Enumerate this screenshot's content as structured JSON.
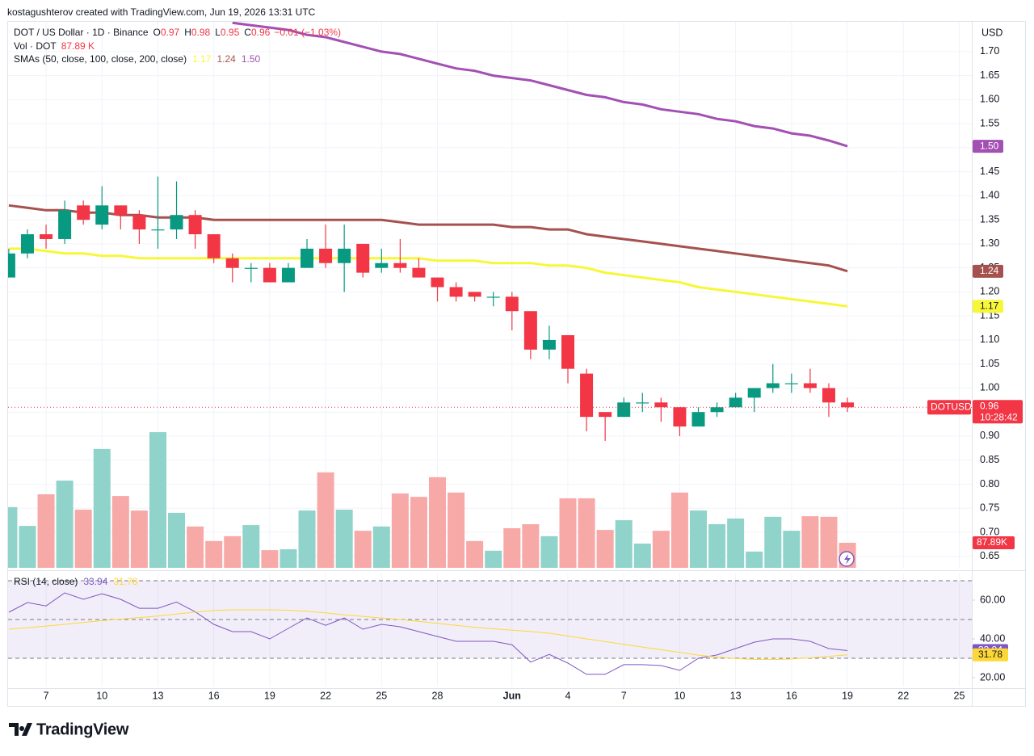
{
  "header": {
    "attribution": "kostagushterov created with TradingView.com, Jun 19, 2026 13:31 UTC"
  },
  "footer": {
    "brand": "TradingView"
  },
  "chart_data": {
    "type": "candlestick",
    "legend": {
      "symbol": "DOT / US Dollar · 1D · Binance",
      "open_key": "O",
      "high_key": "H",
      "low_key": "L",
      "close_key": "C",
      "change": "−0.01 (−1.03%)",
      "volume_title": "Vol · DOT",
      "volume": "87.89 K"
    },
    "currency": "USD",
    "price_badge": {
      "symbol": "DOTUSD",
      "countdown": "10:28:42"
    },
    "up_color": "#089981",
    "down_color": "#f23645",
    "categories": [
      null,
      null,
      "7",
      null,
      null,
      "10",
      null,
      null,
      "13",
      null,
      null,
      "16",
      null,
      null,
      "19",
      null,
      null,
      "22",
      null,
      null,
      "25",
      null,
      null,
      "28",
      null,
      null,
      null,
      "Jun",
      null,
      null,
      "4",
      null,
      null,
      "7",
      null,
      null,
      "10",
      null,
      null,
      "13",
      null,
      null,
      "16",
      null,
      null,
      "19",
      null,
      null,
      "22",
      null,
      null,
      "25"
    ],
    "open": [
      1.23,
      1.28,
      1.32,
      1.31,
      1.38,
      1.34,
      1.38,
      1.36,
      1.33,
      1.33,
      1.36,
      1.32,
      1.27,
      1.25,
      1.25,
      1.22,
      1.25,
      1.29,
      1.26,
      1.3,
      1.25,
      1.26,
      1.25,
      1.23,
      1.21,
      1.2,
      1.19,
      1.19,
      1.16,
      1.08,
      1.11,
      1.03,
      0.95,
      0.94,
      0.97,
      0.97,
      0.96,
      0.92,
      0.95,
      0.96,
      0.98,
      1.0,
      1.01,
      1.01,
      1.0,
      0.97,
      null,
      null,
      null,
      null,
      null,
      null
    ],
    "high": [
      1.29,
      1.33,
      1.34,
      1.39,
      1.39,
      1.42,
      1.38,
      1.37,
      1.44,
      1.43,
      1.37,
      1.32,
      1.28,
      1.26,
      1.26,
      1.26,
      1.31,
      1.34,
      1.34,
      1.3,
      1.29,
      1.31,
      1.27,
      1.23,
      1.22,
      1.2,
      1.2,
      1.2,
      1.16,
      1.13,
      1.11,
      1.04,
      0.95,
      0.98,
      0.99,
      0.98,
      0.96,
      0.96,
      0.97,
      0.99,
      1.0,
      1.05,
      1.03,
      1.04,
      1.01,
      0.98,
      null,
      null,
      null,
      null,
      null,
      null
    ],
    "low": [
      1.23,
      1.27,
      1.29,
      1.3,
      1.34,
      1.33,
      1.33,
      1.3,
      1.29,
      1.31,
      1.29,
      1.26,
      1.22,
      1.22,
      1.22,
      1.22,
      1.25,
      1.25,
      1.2,
      1.23,
      1.24,
      1.24,
      1.23,
      1.18,
      1.18,
      1.18,
      1.17,
      1.12,
      1.06,
      1.06,
      1.01,
      0.91,
      0.89,
      0.94,
      0.95,
      0.93,
      0.9,
      0.92,
      0.94,
      0.96,
      0.95,
      0.99,
      0.99,
      0.99,
      0.94,
      0.95,
      null,
      null,
      null,
      null,
      null,
      null
    ],
    "close": [
      1.28,
      1.32,
      1.31,
      1.37,
      1.35,
      1.38,
      1.36,
      1.33,
      1.33,
      1.36,
      1.32,
      1.27,
      1.25,
      1.25,
      1.22,
      1.25,
      1.29,
      1.26,
      1.29,
      1.24,
      1.26,
      1.25,
      1.23,
      1.21,
      1.19,
      1.19,
      1.19,
      1.16,
      1.08,
      1.1,
      1.04,
      0.94,
      0.94,
      0.97,
      0.97,
      0.96,
      0.92,
      0.95,
      0.96,
      0.98,
      1.0,
      1.01,
      1.01,
      1.0,
      0.97,
      0.96,
      null,
      null,
      null,
      null,
      null,
      null
    ],
    "ylim": [
      0.626,
      1.762
    ],
    "yticks": [
      0.65,
      {
        "value": 0.7,
        "label": "0.70"
      },
      0.75,
      {
        "value": 0.8,
        "label": "0.80"
      },
      0.85,
      {
        "value": 0.9,
        "label": "0.90"
      },
      0.95,
      {
        "value": 1.0,
        "label": "1.00"
      },
      1.05,
      {
        "value": 1.1,
        "label": "1.10"
      },
      1.15,
      {
        "value": 1.2,
        "label": "1.20"
      },
      1.25,
      {
        "value": 1.3,
        "label": "1.30"
      },
      1.35,
      {
        "value": 1.4,
        "label": "1.40"
      },
      1.45,
      {
        "value": 1.5,
        "label": "1.50"
      },
      1.55,
      {
        "value": 1.6,
        "label": "1.60"
      },
      1.65,
      {
        "value": 1.7,
        "label": "1.70"
      }
    ],
    "grid": true,
    "volume": {
      "up_color": "#8fd3cb",
      "down_color": "#f7a9a7",
      "ylim": [
        0,
        1916
      ],
      "last_label": "87.89K",
      "values": [
        213,
        147,
        258,
        306,
        204,
        417,
        252,
        201,
        476,
        193,
        145,
        94,
        111,
        150,
        62,
        65,
        201,
        335,
        204,
        130,
        145,
        261,
        249,
        318,
        264,
        94,
        60,
        139,
        153,
        111,
        244,
        244,
        133,
        167,
        85,
        130,
        264,
        201,
        153,
        173,
        57,
        179,
        130,
        181,
        179,
        87.89,
        null,
        null,
        null,
        null,
        null,
        null
      ]
    },
    "sma": {
      "title": "SMAs (50, close, 100, close, 200, close)",
      "series": [
        {
          "color": "#f7f73a",
          "label": "1.17",
          "values": [
            1.29,
            1.29,
            1.285,
            1.28,
            1.28,
            1.275,
            1.275,
            1.27,
            1.27,
            1.27,
            1.27,
            1.27,
            1.27,
            1.27,
            1.27,
            1.27,
            1.27,
            1.27,
            1.27,
            1.27,
            1.27,
            1.27,
            1.27,
            1.265,
            1.265,
            1.265,
            1.26,
            1.26,
            1.26,
            1.255,
            1.255,
            1.25,
            1.24,
            1.235,
            1.23,
            1.225,
            1.22,
            1.21,
            1.205,
            1.2,
            1.195,
            1.19,
            1.185,
            1.18,
            1.175,
            1.17,
            null,
            null,
            null,
            null,
            null,
            null
          ]
        },
        {
          "color": "#a5524f",
          "label": "1.24",
          "values": [
            1.38,
            1.375,
            1.37,
            1.37,
            1.365,
            1.365,
            1.36,
            1.36,
            1.355,
            1.355,
            1.355,
            1.35,
            1.35,
            1.35,
            1.35,
            1.35,
            1.35,
            1.35,
            1.35,
            1.35,
            1.35,
            1.345,
            1.34,
            1.34,
            1.34,
            1.34,
            1.34,
            1.335,
            1.335,
            1.33,
            1.33,
            1.32,
            1.315,
            1.31,
            1.305,
            1.3,
            1.295,
            1.29,
            1.285,
            1.28,
            1.275,
            1.27,
            1.265,
            1.26,
            1.255,
            1.243,
            null,
            null,
            null,
            null,
            null,
            null
          ]
        },
        {
          "color": "#a350b3",
          "label": "1.50",
          "values": [
            null,
            null,
            null,
            null,
            null,
            null,
            null,
            null,
            null,
            null,
            null,
            null,
            1.76,
            1.755,
            1.75,
            1.745,
            1.735,
            1.73,
            1.72,
            1.71,
            1.7,
            1.695,
            1.685,
            1.675,
            1.665,
            1.66,
            1.65,
            1.645,
            1.64,
            1.63,
            1.62,
            1.61,
            1.605,
            1.595,
            1.59,
            1.58,
            1.575,
            1.57,
            1.56,
            1.555,
            1.545,
            1.54,
            1.53,
            1.525,
            1.515,
            1.503,
            null,
            null,
            null,
            null,
            null,
            null
          ]
        }
      ]
    },
    "rsi": {
      "title": "RSI (14, close)",
      "ylim": [
        15.4,
        73.75
      ],
      "yticks": [
        {
          "value": 20,
          "label": "20.00"
        },
        {
          "value": 40,
          "label": "40.00"
        },
        {
          "value": 60,
          "label": "60.00"
        }
      ],
      "bands": [
        70,
        50,
        30
      ],
      "band_color": "#7e57c2",
      "series": [
        {
          "color": "#7e57c2",
          "values": [
            53.75,
            58.75,
            57,
            63.75,
            60.4,
            63.3,
            60.4,
            55.8,
            55.8,
            59,
            54,
            47.5,
            43.75,
            43.75,
            40,
            45.4,
            50.8,
            47,
            50.8,
            45,
            47.5,
            46.25,
            43.75,
            41.25,
            38.75,
            38.75,
            38.75,
            37,
            28,
            32,
            27.5,
            21.7,
            21.7,
            26.7,
            26.7,
            26.25,
            23.75,
            30,
            31.7,
            35,
            38.3,
            40,
            40,
            38.75,
            35,
            33.94,
            null,
            null,
            null,
            null,
            null,
            null
          ]
        },
        {
          "color": "#fdd835",
          "values": [
            45,
            45.8,
            46.6,
            47.5,
            48.5,
            49.4,
            50.2,
            51,
            51.8,
            52.8,
            53.8,
            54.6,
            55,
            55,
            55,
            54.8,
            54.2,
            53.4,
            52.4,
            51.6,
            50.8,
            50,
            49,
            48,
            47,
            46,
            45.2,
            44.5,
            43.8,
            42.9,
            41.5,
            40,
            38.6,
            37.2,
            35.8,
            34.4,
            33,
            31.6,
            30.6,
            29.8,
            29.4,
            29.3,
            29.6,
            30.2,
            31,
            31.78,
            null,
            null,
            null,
            null,
            null,
            null
          ]
        }
      ]
    }
  }
}
